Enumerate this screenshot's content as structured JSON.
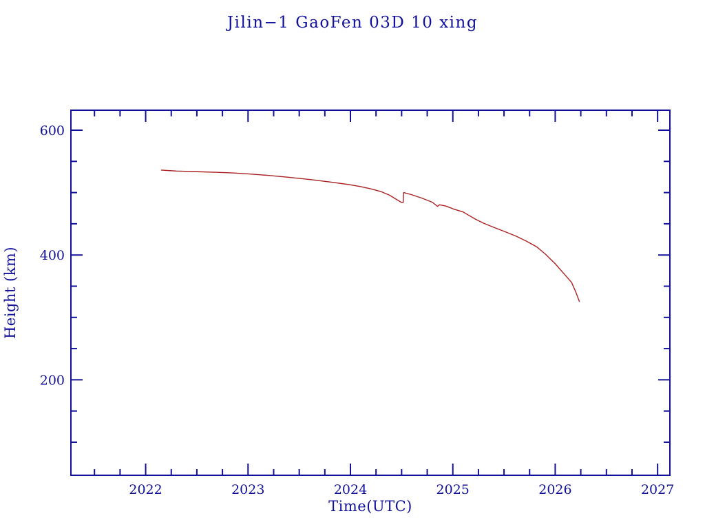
{
  "title": "Jilin−1 GaoFen 03D 10 xing",
  "colors": {
    "text_and_axis": "#10109a",
    "curve": "#aa2020",
    "background": "#ffffff"
  },
  "chart_data": {
    "type": "line",
    "title": "Jilin−1 GaoFen 03D 10 xing",
    "xlabel": "Time(UTC)",
    "ylabel": "Height (km)",
    "xlim": [
      2021.27,
      2027.12
    ],
    "ylim": [
      47,
      632
    ],
    "grid": false,
    "legend": "none",
    "x_major_ticks": [
      2022,
      2023,
      2024,
      2025,
      2026,
      2027
    ],
    "x_tick_labels": [
      "2022",
      "2023",
      "2024",
      "2025",
      "2026",
      "2027"
    ],
    "x_minor_step": 0.25,
    "y_major_ticks": [
      200,
      400,
      600
    ],
    "y_tick_labels": [
      "200",
      "400",
      "600"
    ],
    "y_minor_ticks": [
      100,
      150,
      250,
      300,
      350,
      450,
      500,
      550
    ],
    "series": [
      {
        "name": "orbital-height-km",
        "color": "#aa2020",
        "points": [
          [
            2022.15,
            536
          ],
          [
            2022.3,
            534.5
          ],
          [
            2022.5,
            533.5
          ],
          [
            2022.7,
            532.5
          ],
          [
            2022.85,
            531.5
          ],
          [
            2023.0,
            530
          ],
          [
            2023.2,
            527.5
          ],
          [
            2023.4,
            524.5
          ],
          [
            2023.6,
            521
          ],
          [
            2023.8,
            517
          ],
          [
            2024.0,
            512.5
          ],
          [
            2024.1,
            509.5
          ],
          [
            2024.2,
            506
          ],
          [
            2024.3,
            501.5
          ],
          [
            2024.38,
            496
          ],
          [
            2024.44,
            490
          ],
          [
            2024.48,
            486
          ],
          [
            2024.5,
            484
          ],
          [
            2024.515,
            484
          ],
          [
            2024.52,
            500
          ],
          [
            2024.6,
            496.5
          ],
          [
            2024.7,
            491
          ],
          [
            2024.8,
            484.5
          ],
          [
            2024.85,
            478
          ],
          [
            2024.87,
            480.5
          ],
          [
            2024.93,
            478.5
          ],
          [
            2024.98,
            475.5
          ],
          [
            2025.0,
            474
          ],
          [
            2025.1,
            469
          ],
          [
            2025.22,
            457.5
          ],
          [
            2025.3,
            451
          ],
          [
            2025.42,
            443
          ],
          [
            2025.5,
            438
          ],
          [
            2025.62,
            430
          ],
          [
            2025.72,
            422
          ],
          [
            2025.82,
            413
          ],
          [
            2025.9,
            402
          ],
          [
            2026.0,
            386
          ],
          [
            2026.08,
            371
          ],
          [
            2026.16,
            356
          ],
          [
            2026.2,
            341
          ],
          [
            2026.237,
            325
          ]
        ]
      }
    ]
  }
}
